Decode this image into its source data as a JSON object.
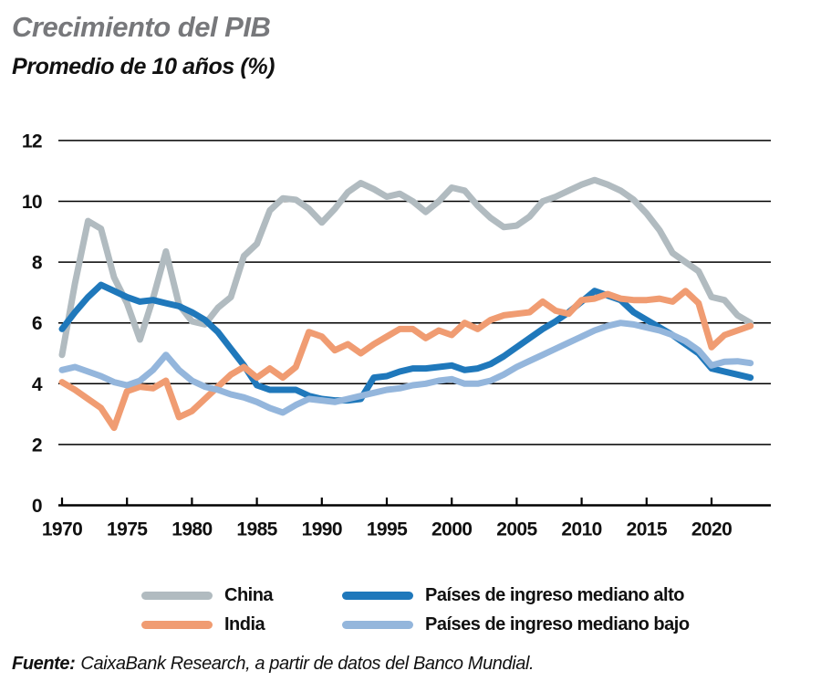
{
  "title": "Crecimiento del PIB",
  "subtitle": "Promedio de 10 años (%)",
  "source": {
    "label": "Fuente:",
    "text": "CaixaBank Research, a partir de datos del Banco Mundial."
  },
  "colors": {
    "china": "#b1bbc0",
    "india": "#f09c72",
    "upper_middle": "#1f78bb",
    "lower_middle": "#94b6dc",
    "grid": "#000000",
    "title_gray": "#77787b"
  },
  "legend": {
    "items": [
      {
        "label": "China",
        "color": "#b1bbc0"
      },
      {
        "label": "Países de ingreso mediano alto",
        "color": "#1f78bb"
      },
      {
        "label": "India",
        "color": "#f09c72"
      },
      {
        "label": "Países de ingreso mediano bajo",
        "color": "#94b6dc"
      }
    ]
  },
  "chart_data": {
    "type": "line",
    "title": "Crecimiento del PIB",
    "subtitle": "Promedio de 10 años (%)",
    "xlabel": "",
    "ylabel": "",
    "ylim": [
      0,
      12
    ],
    "yticks": [
      0,
      2,
      4,
      6,
      8,
      10,
      12
    ],
    "xticks": [
      1970,
      1975,
      1980,
      1985,
      1990,
      1995,
      2000,
      2005,
      2010,
      2015,
      2020
    ],
    "grid": true,
    "legend_position": "bottom",
    "x": [
      1970,
      1971,
      1972,
      1973,
      1974,
      1975,
      1976,
      1977,
      1978,
      1979,
      1980,
      1981,
      1982,
      1983,
      1984,
      1985,
      1986,
      1987,
      1988,
      1989,
      1990,
      1991,
      1992,
      1993,
      1994,
      1995,
      1996,
      1997,
      1998,
      1999,
      2000,
      2001,
      2002,
      2003,
      2004,
      2005,
      2006,
      2007,
      2008,
      2009,
      2010,
      2011,
      2012,
      2013,
      2014,
      2015,
      2016,
      2017,
      2018,
      2019,
      2020,
      2021,
      2022,
      2023
    ],
    "series": [
      {
        "name": "China",
        "color": "#b1bbc0",
        "z": 0,
        "values": [
          4.95,
          7.3,
          9.35,
          9.1,
          7.5,
          6.65,
          5.45,
          6.8,
          8.35,
          6.6,
          6.05,
          5.95,
          6.5,
          6.85,
          8.2,
          8.6,
          9.7,
          10.1,
          10.05,
          9.75,
          9.3,
          9.75,
          10.3,
          10.6,
          10.4,
          10.15,
          10.25,
          10.0,
          9.65,
          10.0,
          10.45,
          10.35,
          9.85,
          9.45,
          9.15,
          9.2,
          9.5,
          10.0,
          10.15,
          10.35,
          10.55,
          10.7,
          10.55,
          10.35,
          10.05,
          9.6,
          9.05,
          8.3,
          8.0,
          7.7,
          6.85,
          6.75,
          6.25,
          6.0
        ]
      },
      {
        "name": "Países de ingreso mediano alto",
        "color": "#1f78bb",
        "z": 1,
        "values": [
          5.8,
          6.35,
          6.85,
          7.25,
          7.05,
          6.85,
          6.7,
          6.75,
          6.65,
          6.55,
          6.35,
          6.1,
          5.7,
          5.15,
          4.6,
          3.95,
          3.8,
          3.8,
          3.8,
          3.6,
          3.5,
          3.45,
          3.45,
          3.5,
          4.2,
          4.25,
          4.4,
          4.5,
          4.5,
          4.55,
          4.6,
          4.45,
          4.5,
          4.65,
          4.9,
          5.2,
          5.5,
          5.8,
          6.05,
          6.35,
          6.7,
          7.05,
          6.9,
          6.75,
          6.35,
          6.1,
          5.85,
          5.6,
          5.3,
          5.0,
          4.5,
          4.4,
          4.3,
          4.2
        ]
      },
      {
        "name": "India",
        "color": "#f09c72",
        "z": 2,
        "values": [
          4.05,
          3.8,
          3.5,
          3.2,
          2.55,
          3.75,
          3.9,
          3.85,
          4.1,
          2.9,
          3.1,
          3.5,
          3.9,
          4.3,
          4.55,
          4.2,
          4.5,
          4.2,
          4.55,
          5.7,
          5.55,
          5.1,
          5.3,
          5.0,
          5.3,
          5.55,
          5.8,
          5.8,
          5.5,
          5.75,
          5.6,
          6.0,
          5.8,
          6.1,
          6.25,
          6.3,
          6.35,
          6.7,
          6.4,
          6.3,
          6.75,
          6.8,
          6.95,
          6.8,
          6.75,
          6.75,
          6.8,
          6.7,
          7.05,
          6.65,
          5.2,
          5.6,
          5.75,
          5.9
        ]
      },
      {
        "name": "Países de ingreso mediano bajo",
        "color": "#94b6dc",
        "z": 3,
        "values": [
          4.45,
          4.55,
          4.4,
          4.25,
          4.05,
          3.95,
          4.1,
          4.45,
          4.95,
          4.45,
          4.1,
          3.9,
          3.8,
          3.65,
          3.55,
          3.4,
          3.2,
          3.05,
          3.3,
          3.5,
          3.45,
          3.4,
          3.5,
          3.6,
          3.7,
          3.8,
          3.85,
          3.95,
          4.0,
          4.1,
          4.15,
          4.0,
          4.0,
          4.1,
          4.3,
          4.55,
          4.75,
          4.95,
          5.15,
          5.35,
          5.55,
          5.75,
          5.9,
          6.0,
          5.95,
          5.85,
          5.75,
          5.6,
          5.4,
          5.1,
          4.6,
          4.72,
          4.74,
          4.68
        ]
      }
    ]
  }
}
